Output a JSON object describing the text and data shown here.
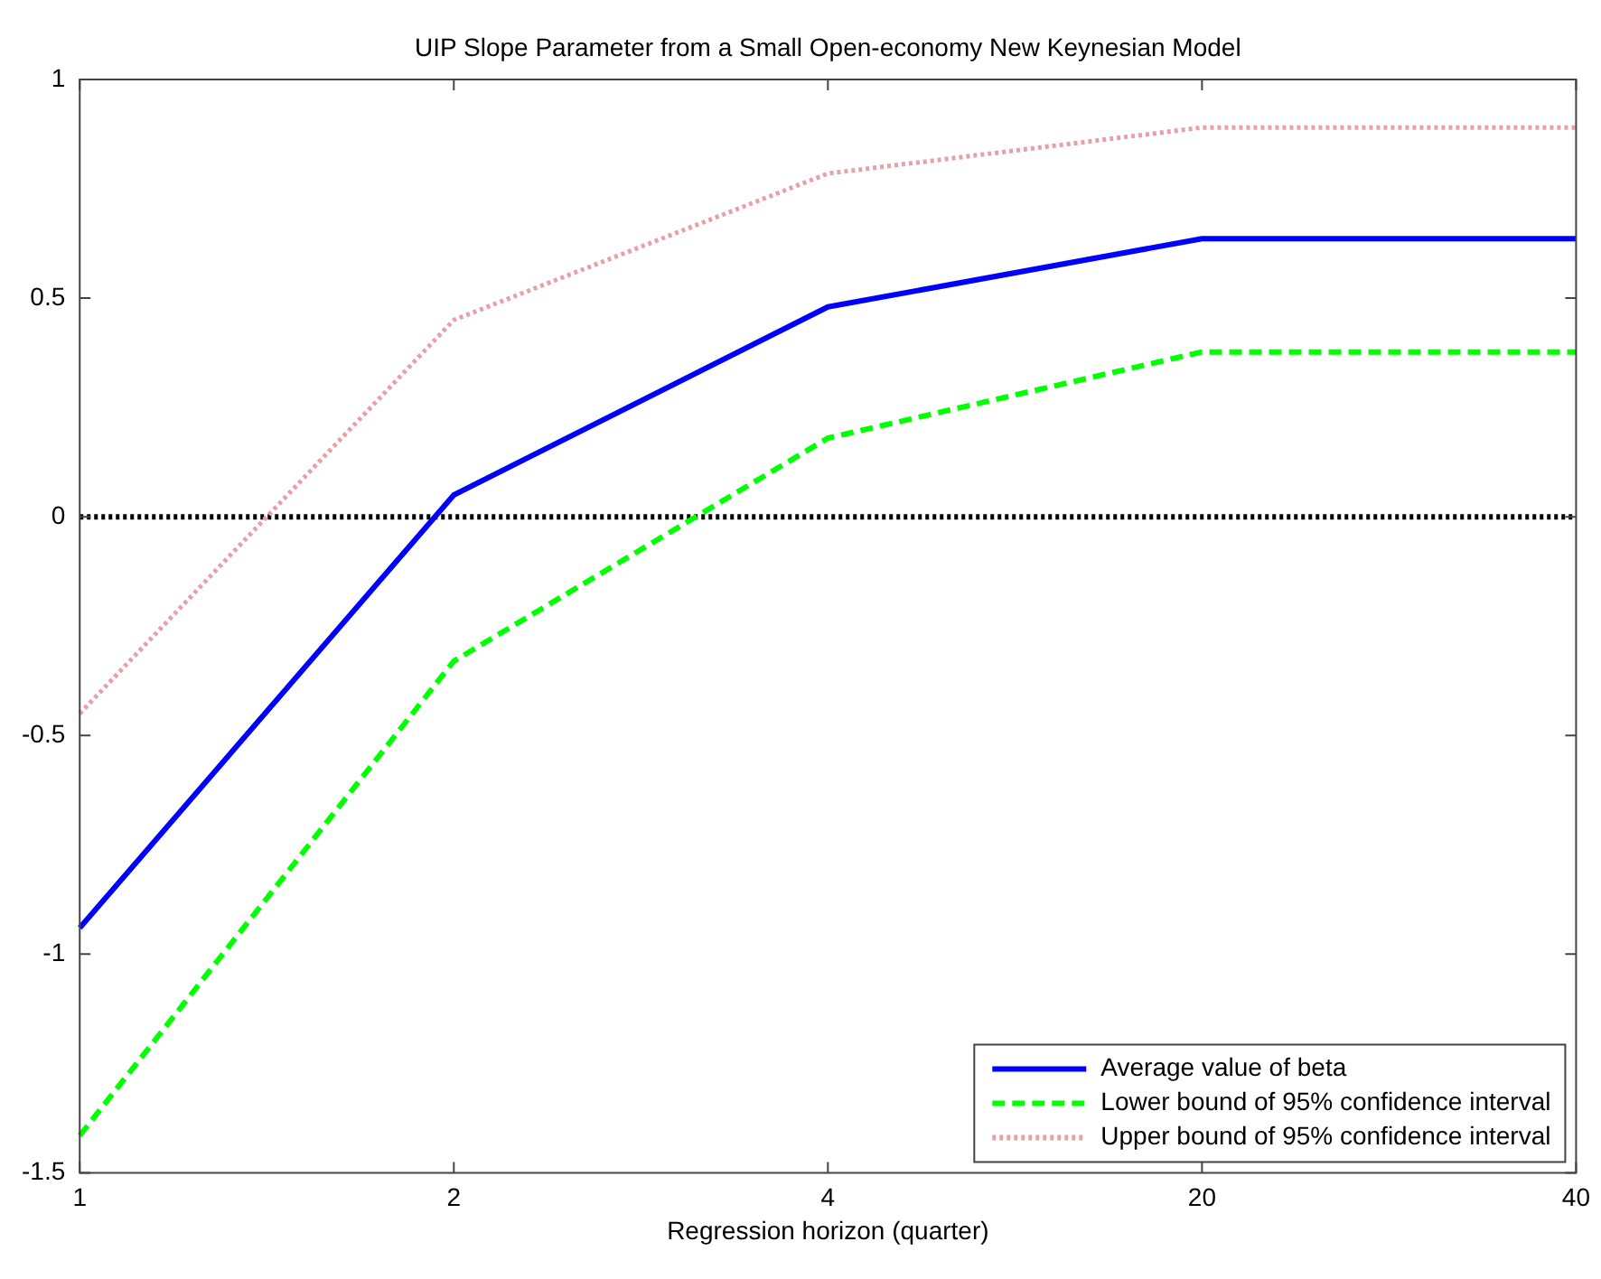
{
  "chart_data": {
    "type": "line",
    "title": "UIP Slope Parameter from a Small Open-economy New Keynesian Model",
    "xlabel": "Regression horizon (quarter)",
    "categories": [
      "1",
      "2",
      "4",
      "20",
      "40"
    ],
    "series": [
      {
        "name": "Average value of beta",
        "color": "#0000ff",
        "line_style": "solid",
        "values": [
          -0.94,
          0.05,
          0.48,
          0.636,
          0.636
        ]
      },
      {
        "name": "Lower bound of 95% confidence interval",
        "color": "#00ff00",
        "line_style": "dashed",
        "values": [
          -1.415,
          -0.33,
          0.18,
          0.377,
          0.377
        ]
      },
      {
        "name": "Upper bound of 95% confidence interval",
        "color": "#e8a0a8",
        "line_style": "dotted",
        "values": [
          -0.45,
          0.45,
          0.785,
          0.89,
          0.89
        ]
      }
    ],
    "ylim": [
      -1.5,
      1
    ],
    "yticks": [
      -1.5,
      -1,
      -0.5,
      0,
      0.5,
      1
    ],
    "ref_lines": [
      {
        "axis": "y",
        "value": 0,
        "color": "#000000",
        "line_style": "dotted"
      }
    ],
    "grid": false,
    "legend": "bottom right",
    "marker": "none"
  }
}
